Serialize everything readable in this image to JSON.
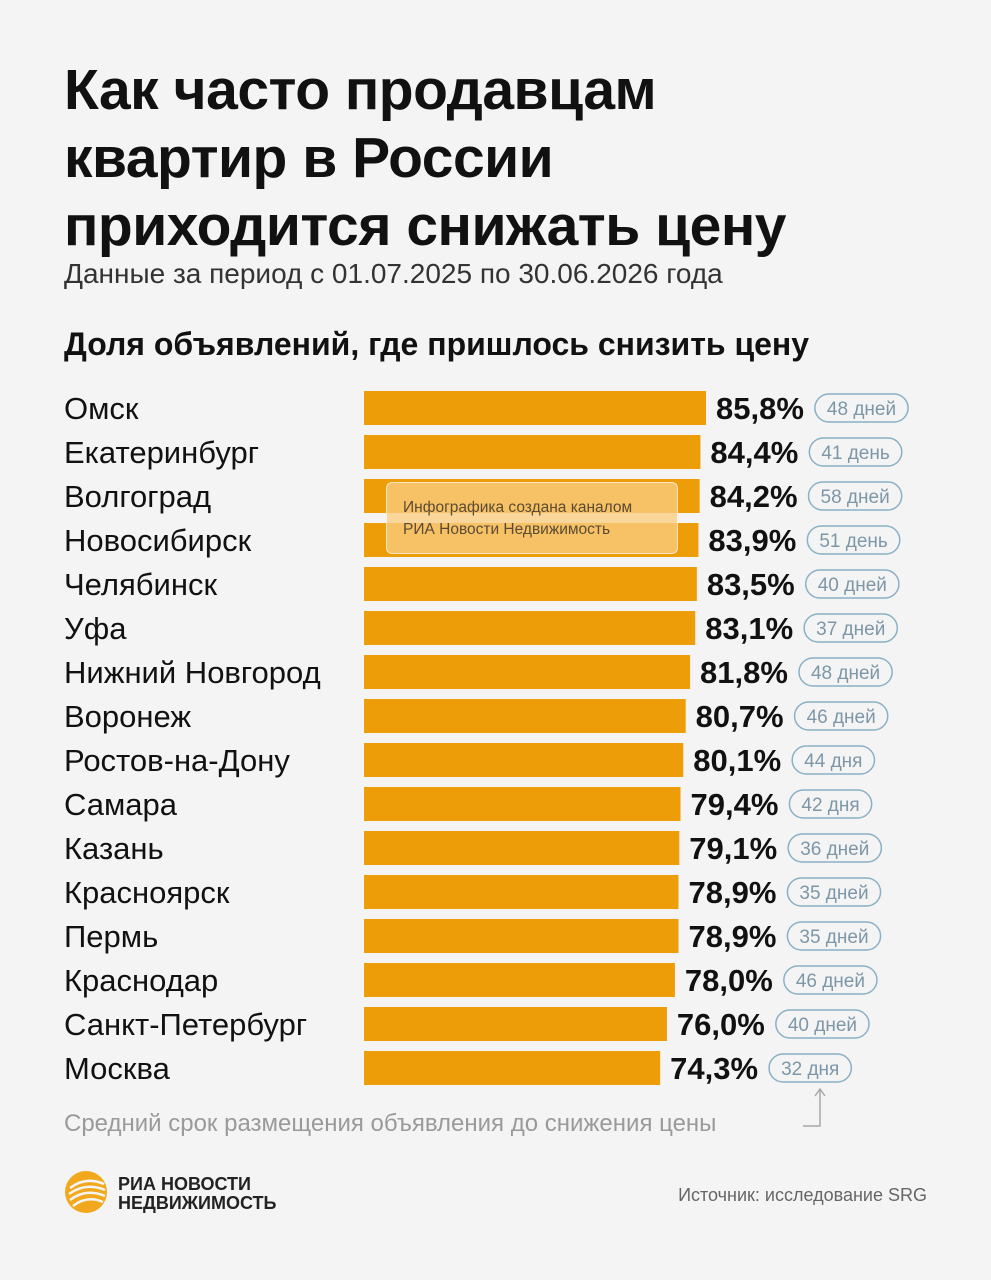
{
  "header": {
    "title_lines": [
      "Как часто продавцам",
      "квартир в России",
      "приходится снижать цену"
    ],
    "subtitle": "Данные за период с 01.07.2025 по 30.06.2026 года"
  },
  "colors": {
    "bar": "#ec9d07",
    "pill_border": "#8ab0c6",
    "pill_text": "#7d97a8",
    "note": "#9a9a9a"
  },
  "chart_data": {
    "type": "bar",
    "orientation": "horizontal",
    "title": "Доля объявлений, где пришлось снизить цену",
    "categories": [
      "Омск",
      "Екатеринбург",
      "Волгоград",
      "Новосибирск",
      "Челябинск",
      "Уфа",
      "Нижний Новгород",
      "Воронеж",
      "Ростов-на-Дону",
      "Самара",
      "Казань",
      "Красноярск",
      "Пермь",
      "Краснодар",
      "Санкт-Петербург",
      "Москва"
    ],
    "values": [
      85.8,
      84.4,
      84.2,
      83.9,
      83.5,
      83.1,
      81.8,
      80.7,
      80.1,
      79.4,
      79.1,
      78.9,
      78.9,
      78.0,
      76.0,
      74.3
    ],
    "value_labels": [
      "85,8%",
      "84,4%",
      "84,2%",
      "83,9%",
      "83,5%",
      "83,1%",
      "81,8%",
      "80,7%",
      "80,1%",
      "79,4%",
      "79,1%",
      "78,9%",
      "78,9%",
      "78,0%",
      "76,0%",
      "74,3%"
    ],
    "durations": [
      "48 дней",
      "41 день",
      "58 дней",
      "51 день",
      "40 дней",
      "37 дней",
      "48 дней",
      "46 дней",
      "44 дня",
      "42 дня",
      "36 дней",
      "35 дней",
      "35 дней",
      "46 дней",
      "40 дней",
      "32 дня"
    ],
    "unit": "%"
  },
  "watermark": {
    "lines": [
      "Инфографика создана каналом",
      "РИА Новости Недвижимость"
    ]
  },
  "footnote": "Средний срок размещения объявления до снижения цены",
  "logo": {
    "lines": [
      "РИА НОВОСТИ",
      "НЕДВИЖИМОСТЬ"
    ]
  },
  "source": "Источник: исследование SRG"
}
